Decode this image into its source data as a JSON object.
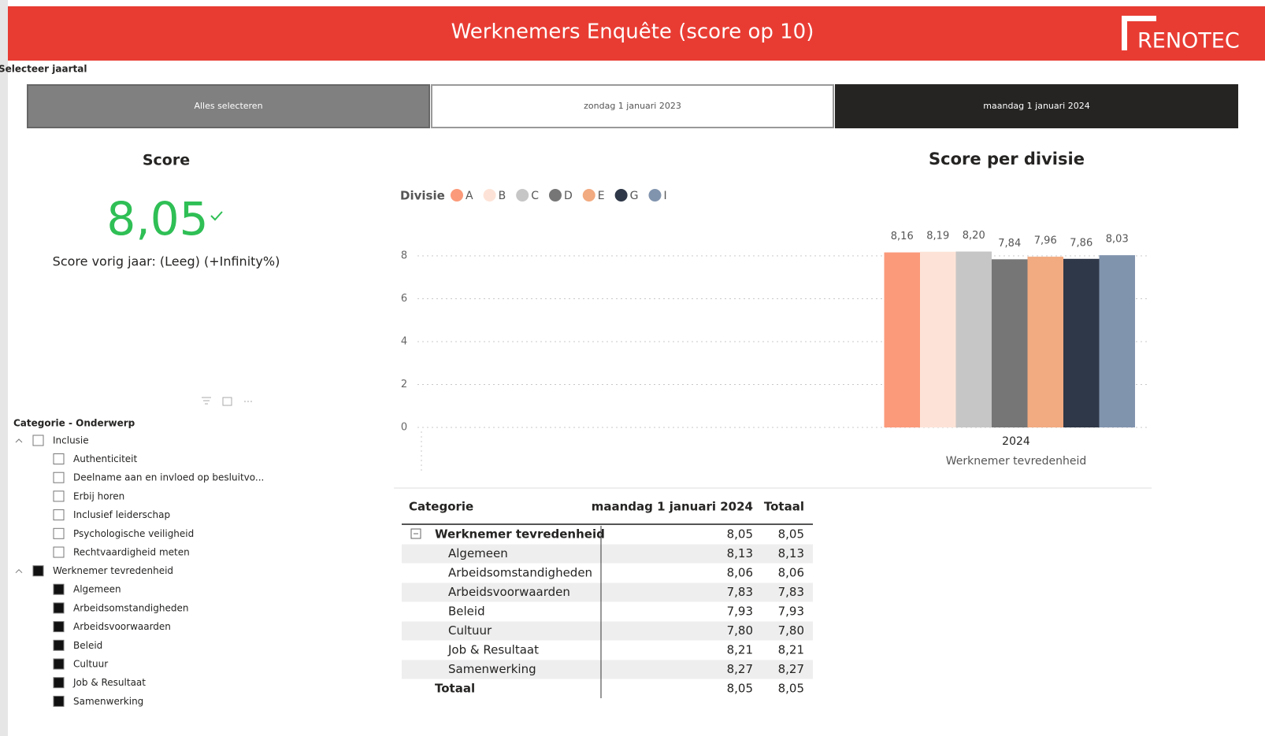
{
  "header": {
    "title": "Werknemers Enquête (score op 10)",
    "logo": "RENOTEC"
  },
  "slicer": {
    "label": "Selecteer jaartal",
    "options": [
      "Alles selecteren",
      "zondag 1 januari 2023",
      "maandag 1 januari 2024"
    ]
  },
  "score": {
    "title": "Score",
    "value": "8,05",
    "subtitle": "Score vorig jaar: (Leeg) (+Infinity%)"
  },
  "chart_data": {
    "type": "bar",
    "title": "Score per divisie",
    "legend_title": "Divisie",
    "categories": [
      "2024"
    ],
    "xlabel": "Werknemer tevredenheid",
    "series": [
      {
        "name": "A",
        "color": "#fb9a7a",
        "values": [
          8.16
        ],
        "value_labels": [
          "8,16"
        ]
      },
      {
        "name": "B",
        "color": "#fde3d7",
        "values": [
          8.19
        ],
        "value_labels": [
          "8,19"
        ]
      },
      {
        "name": "C",
        "color": "#c6c6c6",
        "values": [
          8.2
        ],
        "value_labels": [
          "8,20"
        ]
      },
      {
        "name": "D",
        "color": "#767676",
        "values": [
          7.84
        ],
        "value_labels": [
          "7,84"
        ]
      },
      {
        "name": "E",
        "color": "#f2aa80",
        "values": [
          7.96
        ],
        "value_labels": [
          "7,96"
        ]
      },
      {
        "name": "G",
        "color": "#2f3848",
        "values": [
          7.86
        ],
        "value_labels": [
          "7,86"
        ]
      },
      {
        "name": "I",
        "color": "#8194ae",
        "values": [
          8.03
        ],
        "value_labels": [
          "8,03"
        ]
      }
    ],
    "ylim": [
      0,
      9
    ],
    "yticks": [
      0,
      2,
      4,
      6,
      8
    ],
    "grid": true
  },
  "tree": {
    "title": "Categorie - Onderwerp",
    "groups": [
      {
        "label": "Inclusie",
        "checked": false,
        "items": [
          "Authenticiteit",
          "Deelname aan en invloed op besluitvo...",
          "Erbij horen",
          "Inclusief leiderschap",
          "Psychologische veiligheid",
          "Rechtvaardigheid meten"
        ]
      },
      {
        "label": "Werknemer tevredenheid",
        "checked": true,
        "items": [
          "Algemeen",
          "Arbeidsomstandigheden",
          "Arbeidsvoorwaarden",
          "Beleid",
          "Cultuur",
          "Job & Resultaat",
          "Samenwerking"
        ]
      }
    ]
  },
  "table": {
    "columns": [
      "Categorie",
      "maandag 1 januari 2024",
      "Totaal"
    ],
    "group": [
      "Werknemer tevredenheid",
      "8,05",
      "8,05"
    ],
    "rows": [
      [
        "Algemeen",
        "8,13",
        "8,13"
      ],
      [
        "Arbeidsomstandigheden",
        "8,06",
        "8,06"
      ],
      [
        "Arbeidsvoorwaarden",
        "7,83",
        "7,83"
      ],
      [
        "Beleid",
        "7,93",
        "7,93"
      ],
      [
        "Cultuur",
        "7,80",
        "7,80"
      ],
      [
        "Job & Resultaat",
        "8,21",
        "8,21"
      ],
      [
        "Samenwerking",
        "8,27",
        "8,27"
      ]
    ],
    "total": [
      "Totaal",
      "8,05",
      "8,05"
    ]
  }
}
